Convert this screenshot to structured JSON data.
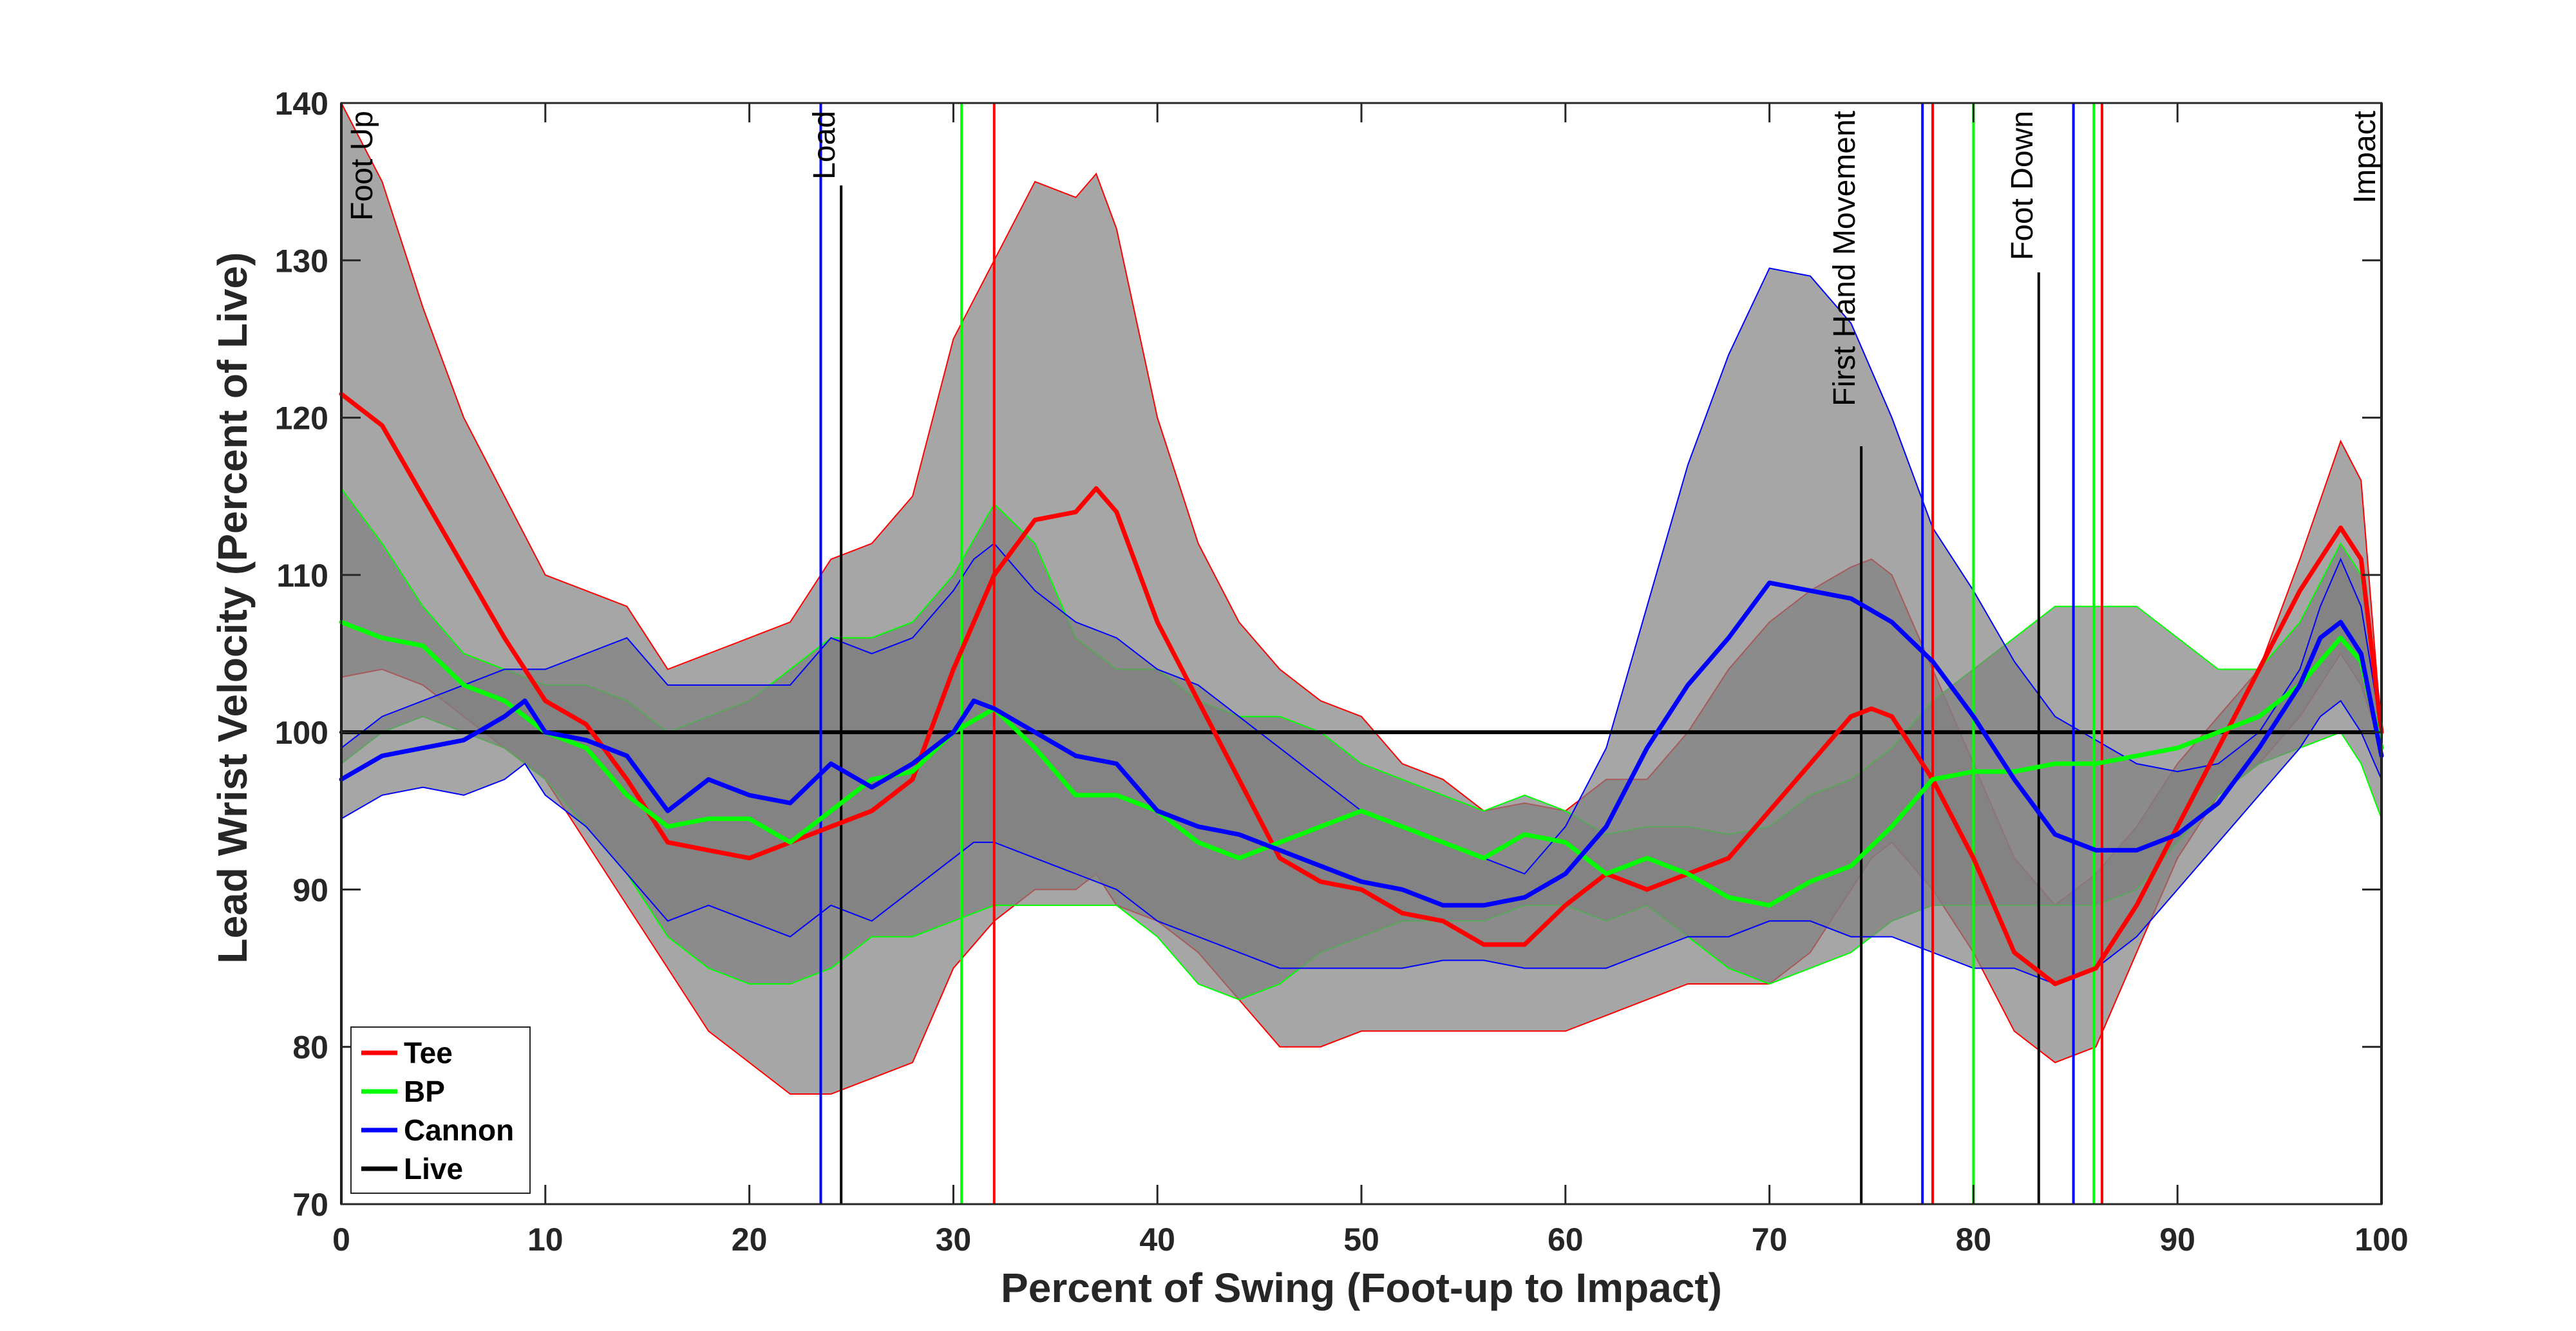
{
  "chart_data": {
    "type": "line",
    "title": "",
    "xlabel": "Percent of Swing (Foot-up to Impact)",
    "ylabel": "Lead Wrist Velocity (Percent of Live)",
    "xlim": [
      0,
      100
    ],
    "ylim": [
      70,
      140
    ],
    "xticks": [
      0,
      10,
      20,
      30,
      40,
      50,
      60,
      70,
      80,
      90,
      100
    ],
    "yticks": [
      70,
      80,
      90,
      100,
      110,
      120,
      130,
      140
    ],
    "grid": false,
    "legend_position": "bottom-left",
    "series": [
      {
        "name": "Tee",
        "color": "#ff0000",
        "x": [
          0,
          2,
          4,
          6,
          8,
          10,
          12,
          14,
          16,
          18,
          20,
          22,
          24,
          26,
          28,
          30,
          32,
          34,
          36,
          37,
          38,
          40,
          42,
          44,
          46,
          48,
          50,
          52,
          54,
          56,
          58,
          60,
          62,
          64,
          66,
          68,
          70,
          72,
          74,
          75,
          76,
          78,
          80,
          82,
          84,
          86,
          88,
          90,
          92,
          94,
          96,
          98,
          99,
          100
        ],
        "y": [
          121.5,
          119.5,
          115,
          110.5,
          106,
          102,
          100.5,
          97,
          93,
          92.5,
          92,
          93,
          94,
          95,
          97,
          104,
          110,
          113.5,
          114,
          115.5,
          114,
          107,
          102,
          97,
          92,
          90.5,
          90,
          88.5,
          88,
          86.5,
          86.5,
          89,
          91,
          90,
          91,
          92,
          95,
          98,
          101,
          101.5,
          101,
          97,
          92,
          86,
          84,
          85,
          89,
          94,
          99,
          104,
          109,
          113,
          111,
          100
        ],
        "band_upper": [
          140,
          135,
          127,
          120,
          115,
          110,
          109,
          108,
          104,
          105,
          106,
          107,
          111,
          112,
          115,
          125,
          130,
          135,
          134,
          135.5,
          132,
          120,
          112,
          107,
          104,
          102,
          101,
          98,
          97,
          95,
          95.5,
          95,
          97,
          97,
          100,
          104,
          107,
          109,
          110.5,
          111,
          110,
          104,
          98,
          92,
          89,
          91,
          94,
          98,
          101,
          104,
          111,
          118.5,
          116,
          100
        ],
        "band_lower": [
          103.5,
          104,
          103,
          101,
          99,
          97,
          93,
          89,
          85,
          81,
          79,
          77,
          77,
          78,
          79,
          85,
          88,
          90,
          90,
          91,
          89,
          88,
          86,
          83,
          80,
          80,
          81,
          81,
          81,
          81,
          81,
          81,
          82,
          83,
          84,
          84,
          84,
          86,
          90,
          92,
          93,
          90,
          86,
          81,
          79,
          80,
          86,
          92,
          96,
          98,
          101,
          105,
          103,
          99
        ]
      },
      {
        "name": "BP",
        "color": "#00ff00",
        "x": [
          0,
          2,
          4,
          6,
          8,
          10,
          12,
          14,
          16,
          18,
          20,
          22,
          24,
          26,
          28,
          30,
          32,
          34,
          36,
          38,
          40,
          42,
          44,
          46,
          48,
          50,
          52,
          54,
          56,
          58,
          60,
          62,
          64,
          66,
          68,
          70,
          72,
          74,
          76,
          78,
          80,
          82,
          84,
          86,
          88,
          90,
          92,
          94,
          96,
          98,
          99,
          100
        ],
        "y": [
          107,
          106,
          105.5,
          103,
          102,
          100,
          99,
          96,
          94,
          94.5,
          94.5,
          93,
          95,
          97,
          97.5,
          100,
          101.5,
          99,
          96,
          96,
          95,
          93,
          92,
          93,
          94,
          95,
          94,
          93,
          92,
          93.5,
          93,
          91,
          92,
          91,
          89.5,
          89,
          90.5,
          91.5,
          94,
          97,
          97.5,
          97.5,
          98,
          98,
          98.5,
          99,
          100,
          101,
          103,
          106,
          104.5,
          99
        ],
        "band_upper": [
          115.5,
          112,
          108,
          105,
          104,
          103,
          103,
          102,
          100,
          101,
          102,
          104,
          106,
          106,
          107,
          110,
          114.5,
          112,
          106,
          104,
          104,
          102,
          101,
          101,
          100,
          98,
          97,
          96,
          95,
          96,
          95,
          93.5,
          94,
          94,
          93.5,
          94,
          96,
          97,
          99,
          102,
          104,
          106,
          108,
          108,
          108,
          106,
          104,
          104,
          107,
          112,
          110,
          100
        ],
        "band_lower": [
          98,
          100,
          101,
          100,
          99,
          97,
          94,
          91,
          87,
          85,
          84,
          84,
          85,
          87,
          87,
          88,
          89,
          89,
          89,
          89,
          87,
          84,
          83,
          84,
          86,
          87,
          88,
          88,
          88,
          89,
          89,
          88,
          89,
          87,
          85,
          84,
          85,
          86,
          88,
          89,
          89,
          89,
          89,
          89,
          90,
          93,
          96,
          98,
          99,
          100,
          98,
          94.5
        ]
      },
      {
        "name": "Cannon",
        "color": "#0000ff",
        "x": [
          0,
          2,
          4,
          6,
          8,
          9,
          10,
          12,
          14,
          16,
          18,
          20,
          22,
          24,
          26,
          28,
          30,
          31,
          32,
          34,
          36,
          38,
          40,
          42,
          44,
          46,
          48,
          50,
          52,
          54,
          56,
          58,
          60,
          62,
          64,
          66,
          68,
          70,
          72,
          74,
          76,
          78,
          80,
          82,
          84,
          86,
          88,
          90,
          92,
          94,
          96,
          97,
          98,
          99,
          100
        ],
        "y": [
          97,
          98.5,
          99,
          99.5,
          101,
          102,
          100,
          99.5,
          98.5,
          95,
          97,
          96,
          95.5,
          98,
          96.5,
          98,
          100,
          102,
          101.5,
          100,
          98.5,
          98,
          95,
          94,
          93.5,
          92.5,
          91.5,
          90.5,
          90,
          89,
          89,
          89.5,
          91,
          94,
          99,
          103,
          106,
          109.5,
          109,
          108.5,
          107,
          104.5,
          101,
          97,
          93.5,
          92.5,
          92.5,
          93.5,
          95.5,
          99,
          103,
          106,
          107,
          105,
          98.5
        ],
        "band_upper": [
          99,
          101,
          102,
          103,
          104,
          104,
          104,
          105,
          106,
          103,
          103,
          103,
          103,
          106,
          105,
          106,
          109,
          111,
          112,
          109,
          107,
          106,
          104,
          103,
          101,
          99,
          97,
          95,
          94,
          93,
          92,
          91,
          94,
          99,
          108,
          117,
          124,
          129.5,
          129,
          126,
          120,
          113,
          109,
          104.5,
          101,
          99.5,
          98,
          97.5,
          98,
          100,
          104,
          108,
          111,
          108,
          100
        ],
        "band_lower": [
          94.5,
          96,
          96.5,
          96,
          97,
          98,
          96,
          94,
          91,
          88,
          89,
          88,
          87,
          89,
          88,
          90,
          92,
          93,
          93,
          92,
          91,
          90,
          88,
          87,
          86,
          85,
          85,
          85,
          85,
          85.5,
          85.5,
          85,
          85,
          85,
          86,
          87,
          87,
          88,
          88,
          87,
          87,
          86,
          85,
          85,
          84,
          85,
          87,
          90,
          93,
          96,
          99,
          101,
          102,
          100,
          97
        ]
      },
      {
        "name": "Live",
        "color": "#000000",
        "x": [
          0,
          100
        ],
        "y": [
          100,
          100
        ]
      }
    ],
    "events": [
      {
        "label": "Foot Up",
        "x": 0,
        "color": "#000000"
      },
      {
        "label": "Load",
        "x": 24.5,
        "color": "#000000"
      },
      {
        "label": "First Hand Movement",
        "x": 74.5,
        "color": "#000000"
      },
      {
        "label": "Foot Down",
        "x": 83.2,
        "color": "#000000"
      },
      {
        "label": "Impact",
        "x": 100,
        "color": "#000000"
      }
    ],
    "event_lines": [
      {
        "series": "Cannon",
        "x": 23.5,
        "color": "#0000ff"
      },
      {
        "series": "BP",
        "x": 30.4,
        "color": "#00ff00"
      },
      {
        "series": "Tee",
        "x": 32,
        "color": "#ff0000"
      },
      {
        "series": "Cannon",
        "x": 77.5,
        "color": "#0000ff"
      },
      {
        "series": "Tee",
        "x": 78,
        "color": "#ff0000"
      },
      {
        "series": "BP",
        "x": 80,
        "color": "#00ff00"
      },
      {
        "series": "Cannon",
        "x": 84.9,
        "color": "#0000ff"
      },
      {
        "series": "BP",
        "x": 85.9,
        "color": "#00ff00"
      },
      {
        "series": "Tee",
        "x": 86.3,
        "color": "#ff0000"
      }
    ],
    "band_fill_color": "#808080",
    "band_fill_opacity": 0.7
  }
}
